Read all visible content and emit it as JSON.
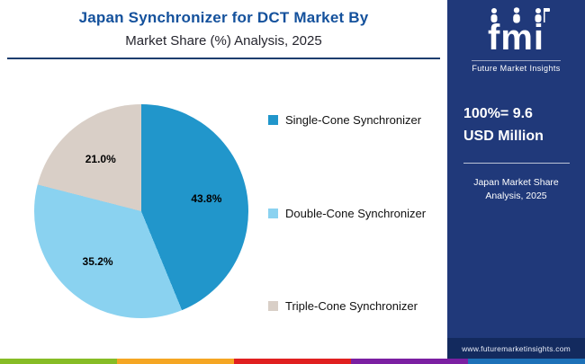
{
  "header": {
    "title_line1": "Japan Synchronizer for DCT Market By",
    "title_line2": "Market Share (%) Analysis, 2025"
  },
  "chart_data": {
    "type": "pie",
    "title": "Japan Synchronizer for DCT Market By Market Share (%) Analysis, 2025",
    "legend_position": "right",
    "start_angle_deg": 0,
    "direction": "clockwise",
    "slices": [
      {
        "label": "Single-Cone Synchronizer",
        "value": 43.8,
        "display": "43.8%",
        "color": "#2196cb"
      },
      {
        "label": "Double-Cone Synchronizer",
        "value": 35.2,
        "display": "35.2%",
        "color": "#8ad2f0"
      },
      {
        "label": "Triple-Cone Synchronizer",
        "value": 21.0,
        "display": "21.0%",
        "color": "#d9cfc7"
      }
    ]
  },
  "sidebar": {
    "logo_text": "fmi",
    "logo_tagline": "Future Market Insights",
    "stat_line1": "100%= 9.6",
    "stat_line2": "USD Million",
    "sub_line1": "Japan Market Share",
    "sub_line2": "Analysis, 2025",
    "url": "www.futuremarketinsights.com",
    "bg_color": "#20397a",
    "url_bg_color": "#132a5e"
  },
  "footer_stripe_colors": [
    "#86bc25",
    "#f5a623",
    "#e02020",
    "#7b1fa2",
    "#1d71b8"
  ]
}
